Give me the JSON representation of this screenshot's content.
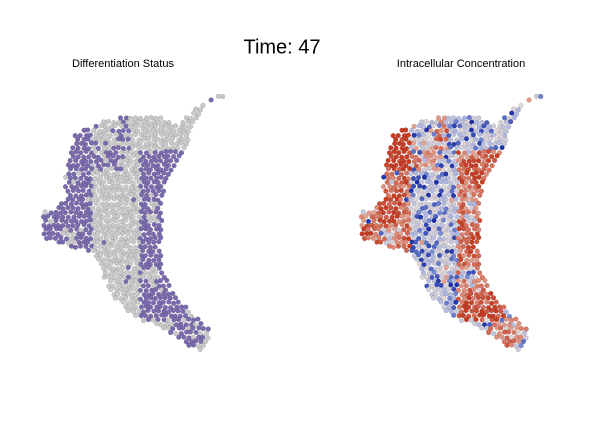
{
  "header": {
    "title": "Time: 47"
  },
  "panels": [
    {
      "title": "Differentiation Status"
    },
    {
      "title": "Intracellular Concentration"
    }
  ]
}
